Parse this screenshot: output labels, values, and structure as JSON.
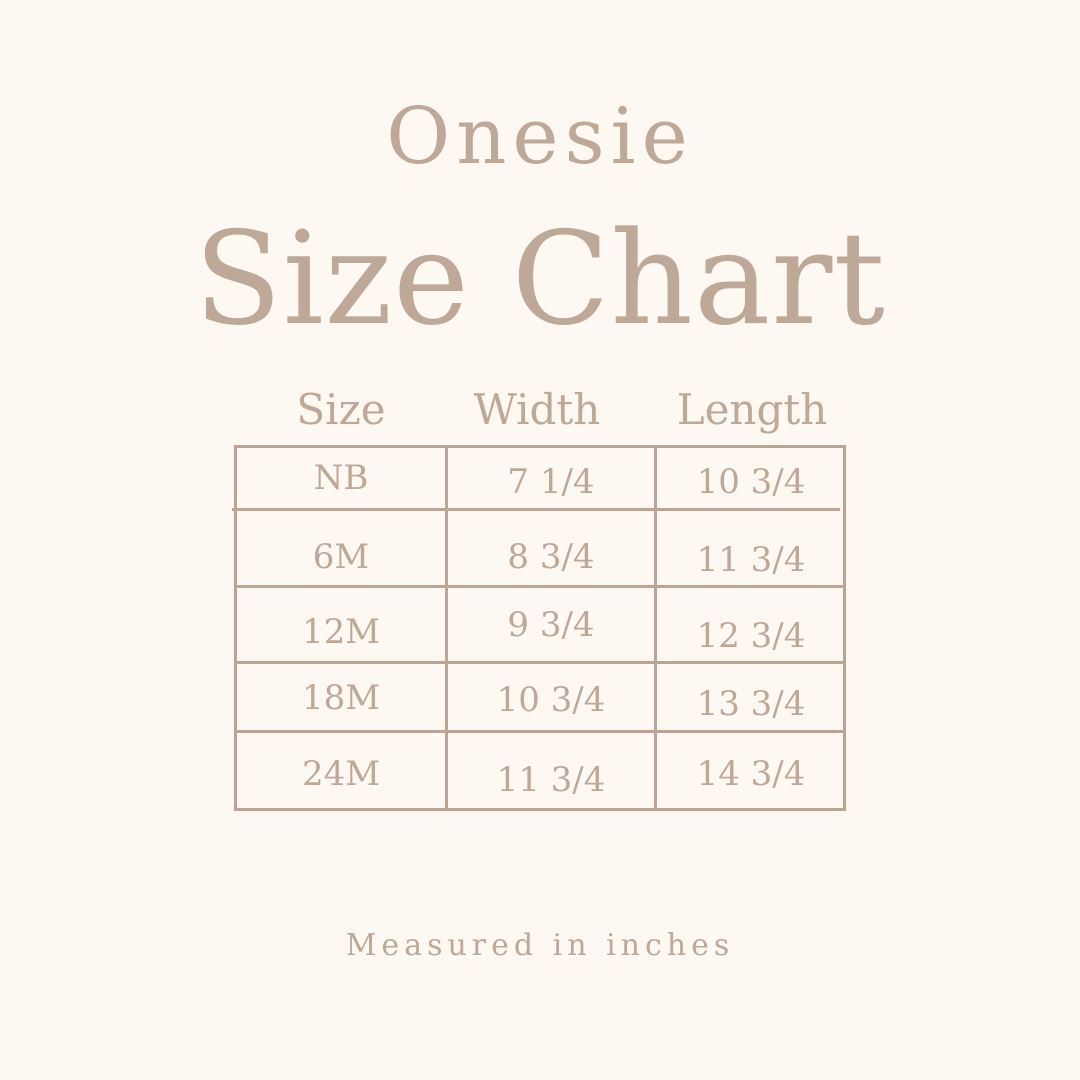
{
  "subtitle": "Onesie",
  "title": "Size Chart",
  "table": {
    "headers": [
      "Size",
      "Width",
      "Length"
    ],
    "rows": [
      [
        "NB",
        "7 1/4",
        "10 3/4"
      ],
      [
        "6M",
        "8 3/4",
        "11 3/4"
      ],
      [
        "12M",
        "9 3/4",
        "12 3/4"
      ],
      [
        "18M",
        "10 3/4",
        "13 3/4"
      ],
      [
        "24M",
        "11 3/4",
        "14 3/4"
      ]
    ]
  },
  "footer": "Measured in inches",
  "colors": {
    "background": "#fdf8f1",
    "text": "#bea898",
    "lines": "#bca594"
  }
}
